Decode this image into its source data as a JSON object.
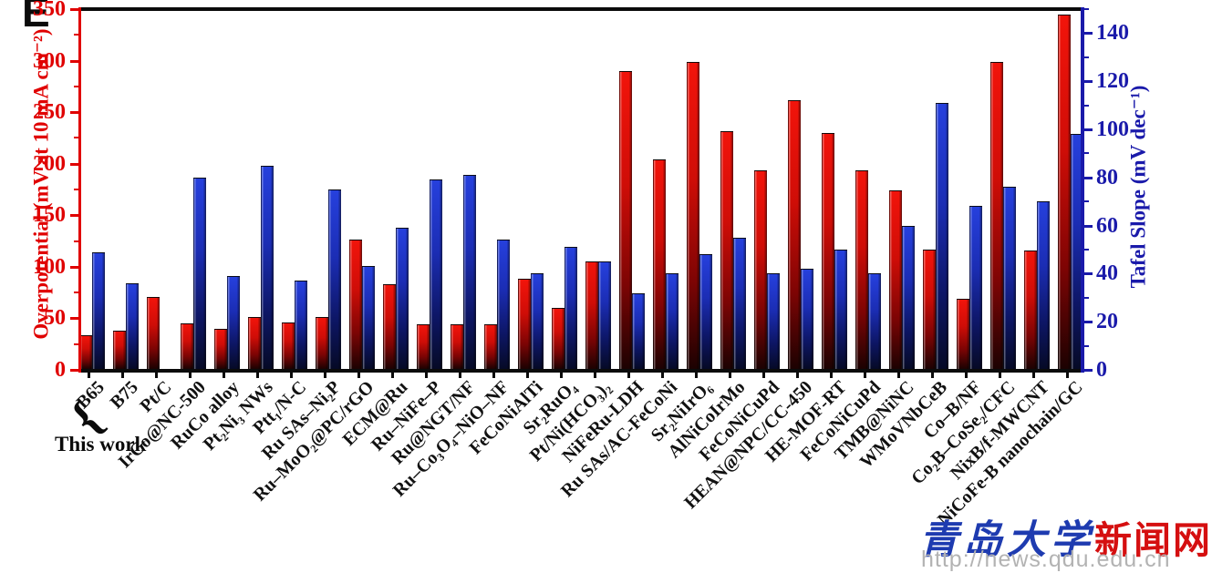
{
  "panel_label": "E",
  "annotations": {
    "this_work_label": "This work",
    "this_work_brace": "{",
    "this_work_groups": [
      "B65",
      "B75"
    ]
  },
  "watermark": {
    "site_name_blue": "青岛大学",
    "site_name_red": "新闻网",
    "url": "http://news.qdu.edu.cn"
  },
  "colors": {
    "overpotential_red": "#e00000",
    "tafel_blue": "#1a1aaa",
    "bar_red_top": "#f2140b",
    "bar_blue_top": "#2640dd",
    "frame_black": "#0b0b0b"
  },
  "chart_data": {
    "type": "bar",
    "title": "",
    "grid": false,
    "legend": "none",
    "left_axis": {
      "label": "Overpotential (mV at 10 mA cm⁻²)",
      "min": 0,
      "max": 350,
      "major_step": 50,
      "minor_step": 25,
      "tick_labels": [
        "0",
        "50",
        "100",
        "150",
        "200",
        "250",
        "300",
        "350"
      ],
      "color": "#e00000"
    },
    "right_axis": {
      "label": "Tafel Slope (mV dec⁻¹)",
      "min": 0,
      "max": 150,
      "major_step": 20,
      "minor_step": 10,
      "tick_labels": [
        "0",
        "20",
        "40",
        "60",
        "80",
        "100",
        "120",
        "140"
      ],
      "color": "#1a1aaa"
    },
    "categories": [
      "B65",
      "B75",
      "Pt/C",
      "IrCo@NC-500",
      "RuCo alloy",
      "Pt₂Ni₃ NWs",
      "Ptt₁/N-C",
      "Ru SAs–Ni₂P",
      "Ru–MoO₂@PC/rGO",
      "ECM@Ru",
      "Ru–NiFe–P",
      "Ru@NGT/NF",
      "Ru–Co₃O₄–NiO–NF",
      "FeCoNiAlTi",
      "Sr₂RuO₄",
      "Pt/Ni(HCO₃)₂",
      "NiFeRu-LDH",
      "Ru SAs/AC-FeCoNi",
      "Sr₂NiIrO₆",
      "AlNiCoIrMo",
      "FeCoNiCuPd",
      "HEAN@NPC/CC-450",
      "HE-MOF-RT",
      "FeCoNiCuPd",
      "TMB@NiNC",
      "WMoVNbCeB",
      "Co–B/NF",
      "Co₂B–CoSe₂/CFC",
      "NixB/f-MWCNT",
      "NiCoFe-B nanochain/GC"
    ],
    "series": [
      {
        "name": "Overpotential (mV at 10 mA cm⁻²)",
        "axis": "left",
        "color": "red",
        "values": [
          34,
          38,
          71,
          45,
          40,
          51,
          46,
          51,
          126,
          83,
          44,
          44,
          44,
          88,
          60,
          105,
          290,
          204,
          299,
          232,
          194,
          262,
          230,
          194,
          174,
          117,
          69,
          299,
          116,
          345
        ]
      },
      {
        "name": "Tafel Slope (mV dec⁻¹)",
        "axis": "right",
        "color": "blue",
        "values": [
          49,
          36,
          null,
          80,
          39,
          85,
          37,
          75,
          43,
          59,
          79,
          81,
          54,
          40,
          51,
          45,
          32,
          40,
          48,
          55,
          40,
          42,
          50,
          40,
          60,
          111,
          68,
          76,
          70,
          98
        ]
      }
    ]
  }
}
